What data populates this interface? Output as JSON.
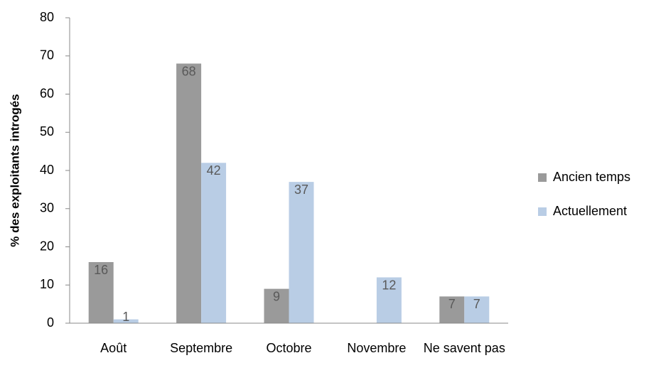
{
  "chart_data": {
    "type": "bar",
    "y_label": "% des exploitants introgés",
    "categories": [
      "Août",
      "Septembre",
      "Octobre",
      "Novembre",
      "Ne savent pas"
    ],
    "series": [
      {
        "name": "Ancien temps",
        "color": "#9a9a9a",
        "values": [
          16,
          68,
          9,
          null,
          7
        ]
      },
      {
        "name": "Actuellement",
        "color": "#b9cde5",
        "values": [
          1,
          42,
          37,
          12,
          7
        ]
      }
    ],
    "ylim": [
      0,
      80
    ],
    "yticks": [
      0,
      10,
      20,
      30,
      40,
      50,
      60,
      70,
      80
    ],
    "legend": "right",
    "label_color": "#595959"
  }
}
